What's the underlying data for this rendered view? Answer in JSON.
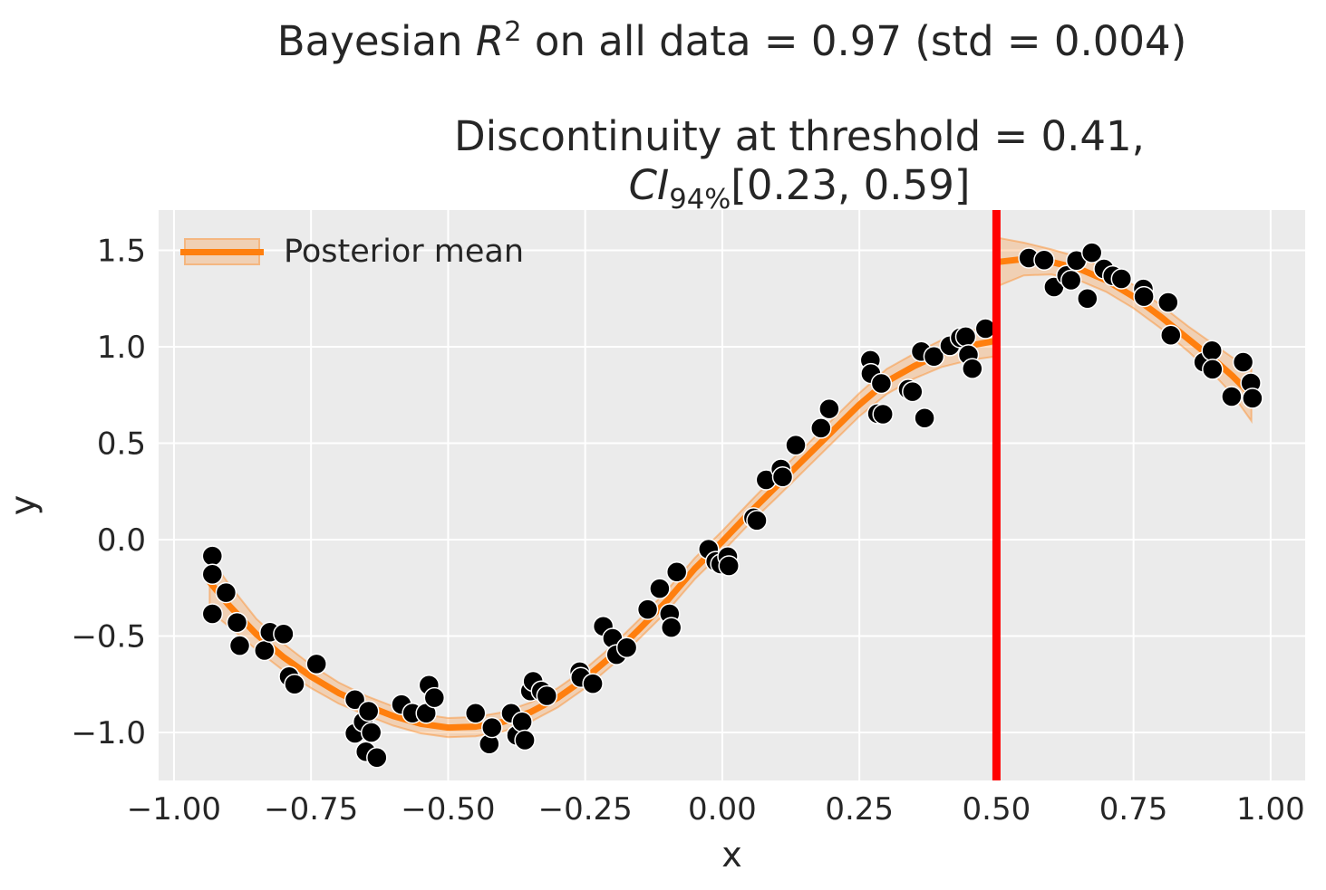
{
  "title": {
    "part1": "Bayesian ",
    "math_r": "R",
    "math_exp": "2",
    "part2": " on all data = 0.97 (std = 0.004)"
  },
  "subtitle": {
    "line1": "Discontinuity at threshold = 0.41,",
    "ci": "CI",
    "ci_sub": "94%",
    "ci_range": "[0.23, 0.59]"
  },
  "legend": {
    "posterior_mean_label": "Posterior mean"
  },
  "axes": {
    "xlabel": "x",
    "ylabel": "y"
  },
  "colors": {
    "figure_bg": "#ffffff",
    "plot_bg": "#ebebeb",
    "grid": "#ffffff",
    "text": "#262626",
    "scatter": "#000000",
    "scatter_edge": "#ffffff",
    "posterior_line": "#ff7f0e",
    "band_fill": "#ff7f0e",
    "band_fill_opacity": 0.25,
    "band_edge_opacity": 0.4,
    "threshold": "#ff0000"
  },
  "chart_data": {
    "type": "scatter",
    "title": "Bayesian R^2 on all data = 0.97 (std = 0.004)",
    "subtitle": "Discontinuity at threshold = 0.41, CI_94% [0.23, 0.59]",
    "xlabel": "x",
    "ylabel": "y",
    "xlim": [
      -1.028,
      1.063
    ],
    "ylim": [
      -1.249,
      1.709
    ],
    "grid": true,
    "legend_position": "upper left",
    "xticks": {
      "values": [
        -1.0,
        -0.75,
        -0.5,
        -0.25,
        0.0,
        0.25,
        0.5,
        0.75,
        1.0
      ],
      "labels": [
        "−1.00",
        "−0.75",
        "−0.50",
        "−0.25",
        "0.00",
        "0.25",
        "0.50",
        "0.75",
        "1.00"
      ]
    },
    "yticks": {
      "values": [
        1.5,
        1.0,
        0.5,
        0.0,
        -0.5,
        -1.0
      ],
      "labels": [
        "1.5",
        "1.0",
        "0.5",
        "0.0",
        "−0.5",
        "−1.0"
      ]
    },
    "threshold_x": 0.5,
    "discontinuity": {
      "estimate": 0.41,
      "ci_level": "94%",
      "ci_low": 0.23,
      "ci_high": 0.59
    },
    "bayesian_r2": {
      "mean": 0.97,
      "std": 0.004
    },
    "marker_radius_px": 11,
    "scatter_points": [
      [
        -0.93,
        -0.085
      ],
      [
        -0.93,
        -0.18
      ],
      [
        -0.93,
        -0.385
      ],
      [
        -0.905,
        -0.275
      ],
      [
        -0.885,
        -0.43
      ],
      [
        -0.88,
        -0.55
      ],
      [
        -0.835,
        -0.575
      ],
      [
        -0.825,
        -0.48
      ],
      [
        -0.8,
        -0.49
      ],
      [
        -0.79,
        -0.71
      ],
      [
        -0.78,
        -0.75
      ],
      [
        -0.74,
        -0.645
      ],
      [
        -0.67,
        -0.83
      ],
      [
        -0.67,
        -1.005
      ],
      [
        -0.655,
        -0.945
      ],
      [
        -0.65,
        -1.1
      ],
      [
        -0.645,
        -0.89
      ],
      [
        -0.64,
        -1.0
      ],
      [
        -0.63,
        -1.13
      ],
      [
        -0.585,
        -0.855
      ],
      [
        -0.565,
        -0.9
      ],
      [
        -0.54,
        -0.9
      ],
      [
        -0.535,
        -0.755
      ],
      [
        -0.525,
        -0.82
      ],
      [
        -0.45,
        -0.9
      ],
      [
        -0.425,
        -1.06
      ],
      [
        -0.42,
        -0.975
      ],
      [
        -0.385,
        -0.9
      ],
      [
        -0.375,
        -1.015
      ],
      [
        -0.365,
        -0.945
      ],
      [
        -0.36,
        -1.04
      ],
      [
        -0.35,
        -0.785
      ],
      [
        -0.345,
        -0.735
      ],
      [
        -0.33,
        -0.785
      ],
      [
        -0.32,
        -0.81
      ],
      [
        -0.26,
        -0.685
      ],
      [
        -0.258,
        -0.715
      ],
      [
        -0.236,
        -0.747
      ],
      [
        -0.217,
        -0.45
      ],
      [
        -0.2,
        -0.512
      ],
      [
        -0.193,
        -0.597
      ],
      [
        -0.174,
        -0.56
      ],
      [
        -0.136,
        -0.362
      ],
      [
        -0.114,
        -0.254
      ],
      [
        -0.096,
        -0.385
      ],
      [
        -0.093,
        -0.456
      ],
      [
        -0.083,
        -0.168
      ],
      [
        -0.025,
        -0.05
      ],
      [
        -0.012,
        -0.113
      ],
      [
        -0.003,
        -0.127
      ],
      [
        0.01,
        -0.089
      ],
      [
        0.012,
        -0.136
      ],
      [
        0.057,
        0.113
      ],
      [
        0.063,
        0.099
      ],
      [
        0.08,
        0.31
      ],
      [
        0.107,
        0.366
      ],
      [
        0.11,
        0.325
      ],
      [
        0.134,
        0.49
      ],
      [
        0.18,
        0.578
      ],
      [
        0.195,
        0.678
      ],
      [
        0.27,
        0.93
      ],
      [
        0.271,
        0.861
      ],
      [
        0.29,
        0.81
      ],
      [
        0.283,
        0.653
      ],
      [
        0.293,
        0.65
      ],
      [
        0.339,
        0.78
      ],
      [
        0.347,
        0.767
      ],
      [
        0.363,
        0.975
      ],
      [
        0.386,
        0.95
      ],
      [
        0.369,
        0.63
      ],
      [
        0.415,
        1.005
      ],
      [
        0.434,
        1.047
      ],
      [
        0.444,
        1.052
      ],
      [
        0.449,
        0.958
      ],
      [
        0.456,
        0.887
      ],
      [
        0.48,
        1.094
      ],
      [
        0.559,
        1.46
      ],
      [
        0.587,
        1.45
      ],
      [
        0.605,
        1.31
      ],
      [
        0.628,
        1.37
      ],
      [
        0.636,
        1.345
      ],
      [
        0.646,
        1.447
      ],
      [
        0.666,
        1.25
      ],
      [
        0.674,
        1.488
      ],
      [
        0.696,
        1.404
      ],
      [
        0.712,
        1.368
      ],
      [
        0.728,
        1.352
      ],
      [
        0.768,
        1.3
      ],
      [
        0.769,
        1.26
      ],
      [
        0.813,
        1.23
      ],
      [
        0.818,
        1.06
      ],
      [
        0.878,
        0.92
      ],
      [
        0.893,
        0.98
      ],
      [
        0.894,
        0.883
      ],
      [
        0.929,
        0.742
      ],
      [
        0.95,
        0.92
      ],
      [
        0.964,
        0.812
      ],
      [
        0.967,
        0.733
      ]
    ],
    "posterior_mean": {
      "legend_label": "Posterior mean",
      "segments": [
        {
          "points": [
            [
              -0.935,
              -0.22,
              -0.37,
              -0.09
            ],
            [
              -0.9,
              -0.34,
              -0.45,
              -0.23
            ],
            [
              -0.85,
              -0.49,
              -0.57,
              -0.41
            ],
            [
              -0.8,
              -0.61,
              -0.68,
              -0.54
            ],
            [
              -0.75,
              -0.71,
              -0.77,
              -0.65
            ],
            [
              -0.7,
              -0.795,
              -0.85,
              -0.74
            ],
            [
              -0.65,
              -0.86,
              -0.91,
              -0.81
            ],
            [
              -0.6,
              -0.915,
              -0.965,
              -0.865
            ],
            [
              -0.55,
              -0.955,
              -1.005,
              -0.905
            ],
            [
              -0.5,
              -0.975,
              -1.025,
              -0.925
            ],
            [
              -0.45,
              -0.97,
              -1.02,
              -0.92
            ],
            [
              -0.4,
              -0.945,
              -0.995,
              -0.895
            ],
            [
              -0.35,
              -0.895,
              -0.945,
              -0.845
            ],
            [
              -0.3,
              -0.82,
              -0.87,
              -0.77
            ],
            [
              -0.25,
              -0.72,
              -0.77,
              -0.67
            ],
            [
              -0.2,
              -0.6,
              -0.65,
              -0.55
            ],
            [
              -0.15,
              -0.46,
              -0.51,
              -0.41
            ],
            [
              -0.1,
              -0.315,
              -0.37,
              -0.26
            ],
            [
              -0.05,
              -0.15,
              -0.205,
              -0.095
            ],
            [
              0.0,
              -0.01,
              -0.065,
              0.045
            ],
            [
              0.05,
              0.14,
              0.085,
              0.195
            ],
            [
              0.1,
              0.28,
              0.22,
              0.34
            ],
            [
              0.15,
              0.42,
              0.36,
              0.48
            ],
            [
              0.2,
              0.56,
              0.5,
              0.62
            ],
            [
              0.25,
              0.7,
              0.64,
              0.76
            ],
            [
              0.3,
              0.82,
              0.755,
              0.885
            ],
            [
              0.35,
              0.9,
              0.835,
              0.965
            ],
            [
              0.4,
              0.965,
              0.895,
              1.035
            ],
            [
              0.45,
              1.005,
              0.93,
              1.08
            ],
            [
              0.497,
              1.03,
              0.95,
              1.115
            ]
          ]
        },
        {
          "points": [
            [
              0.503,
              1.44,
              1.315,
              1.565
            ],
            [
              0.55,
              1.455,
              1.37,
              1.54
            ],
            [
              0.6,
              1.44,
              1.375,
              1.505
            ],
            [
              0.65,
              1.405,
              1.345,
              1.465
            ],
            [
              0.7,
              1.345,
              1.285,
              1.405
            ],
            [
              0.75,
              1.26,
              1.2,
              1.32
            ],
            [
              0.8,
              1.155,
              1.095,
              1.215
            ],
            [
              0.85,
              1.04,
              0.975,
              1.105
            ],
            [
              0.9,
              0.925,
              0.845,
              1.005
            ],
            [
              0.93,
              0.85,
              0.755,
              0.945
            ],
            [
              0.965,
              0.75,
              0.615,
              0.885
            ]
          ]
        }
      ]
    }
  }
}
